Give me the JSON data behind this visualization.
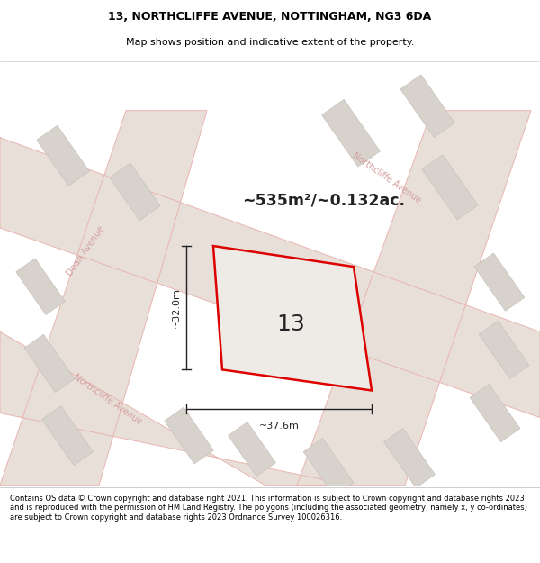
{
  "title_line1": "13, NORTHCLIFFE AVENUE, NOTTINGHAM, NG3 6DA",
  "title_line2": "Map shows position and indicative extent of the property.",
  "area_text": "~535m²/~0.132ac.",
  "plot_number": "13",
  "dim_width": "~37.6m",
  "dim_height": "~32.0m",
  "footer_text": "Contains OS data © Crown copyright and database right 2021. This information is subject to Crown copyright and database rights 2023 and is reproduced with the permission of HM Land Registry. The polygons (including the associated geometry, namely x, y co-ordinates) are subject to Crown copyright and database rights 2023 Ordnance Survey 100026316.",
  "map_bg": "#f2eeea",
  "road_fill": "#e8e0d8",
  "road_line_color": "#e8b4b0",
  "plot_fill": "#eeebe7",
  "plot_edge_color": "#dd0000",
  "building_fill": "#d8d2cc",
  "building_edge": "#c8c2bc",
  "street_label_color": "#d4a0a0",
  "street_label_northcliffe_top": "Northcliffe Avenue",
  "street_label_dean": "Dean Avenue",
  "street_label_northcliffe_bottom": "Northcliffe Avenue",
  "dim_line_color": "#222222",
  "text_color": "#222222",
  "title_fontsize": 9.0,
  "subtitle_fontsize": 8.0,
  "area_fontsize": 12.5,
  "plot_num_fontsize": 18,
  "dim_fontsize": 8.0,
  "street_fontsize": 7.0,
  "footer_fontsize": 6.0
}
